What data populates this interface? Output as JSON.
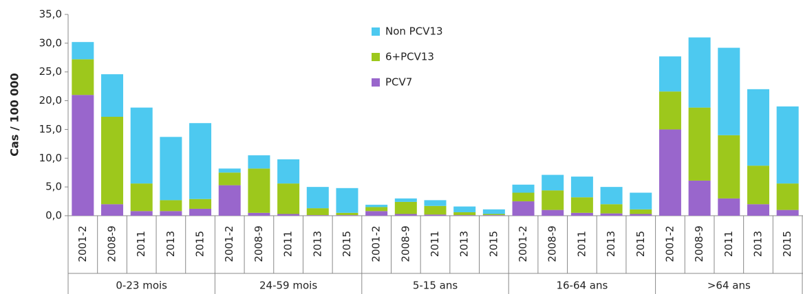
{
  "chart_data": {
    "type": "stacked_bar",
    "y_label": "Cas / 100 000",
    "categories": [
      "2001-2",
      "2008-9",
      "2011",
      "2013",
      "2015",
      "2001-2",
      "2008-9",
      "2011",
      "2013",
      "2015",
      "2001-2",
      "2008-9",
      "2011",
      "2013",
      "2015",
      "2001-2",
      "2008-9",
      "2011",
      "2013",
      "2015",
      "2001-2",
      "2008-9",
      "2011",
      "2013",
      "2015"
    ],
    "groups": [
      "0-23 mois",
      "24-59 mois",
      "5-15 ans",
      "16-64 ans",
      ">64 ans"
    ],
    "series": [
      {
        "name": "PCV7",
        "color": "#9966cc",
        "values": [
          21.0,
          2.0,
          0.8,
          0.8,
          1.2,
          5.3,
          0.5,
          0.3,
          0.1,
          0.1,
          0.8,
          0.3,
          0.2,
          0.1,
          0.1,
          2.5,
          1.0,
          0.5,
          0.4,
          0.3,
          15.0,
          6.1,
          3.0,
          2.0,
          1.0
        ]
      },
      {
        "name": "6+PCV13",
        "color": "#9dc81c",
        "values": [
          6.2,
          15.2,
          4.8,
          1.9,
          1.7,
          2.2,
          7.7,
          5.3,
          1.2,
          0.4,
          0.7,
          2.1,
          1.5,
          0.5,
          0.2,
          1.5,
          3.4,
          2.7,
          1.6,
          0.8,
          6.6,
          12.7,
          11.0,
          6.7,
          4.6
        ]
      },
      {
        "name": "Non PCV13",
        "color": "#4dc9f0",
        "values": [
          3.0,
          7.4,
          13.2,
          11.0,
          13.2,
          0.7,
          2.3,
          4.2,
          3.7,
          4.3,
          0.4,
          0.6,
          1.0,
          1.0,
          0.8,
          1.4,
          2.7,
          3.6,
          3.0,
          2.9,
          6.1,
          12.2,
          15.2,
          13.3,
          13.4
        ]
      }
    ],
    "ylim": [
      0,
      35
    ],
    "yticks": [
      {
        "value": 0,
        "label": "0,0"
      },
      {
        "value": 5,
        "label": "5,0"
      },
      {
        "value": 10,
        "label": "10,0"
      },
      {
        "value": 15,
        "label": "15,0"
      },
      {
        "value": 20,
        "label": "20,0"
      },
      {
        "value": 25,
        "label": "25,0"
      },
      {
        "value": 30,
        "label": "30,0"
      },
      {
        "value": 35,
        "label": "35,0"
      }
    ]
  }
}
